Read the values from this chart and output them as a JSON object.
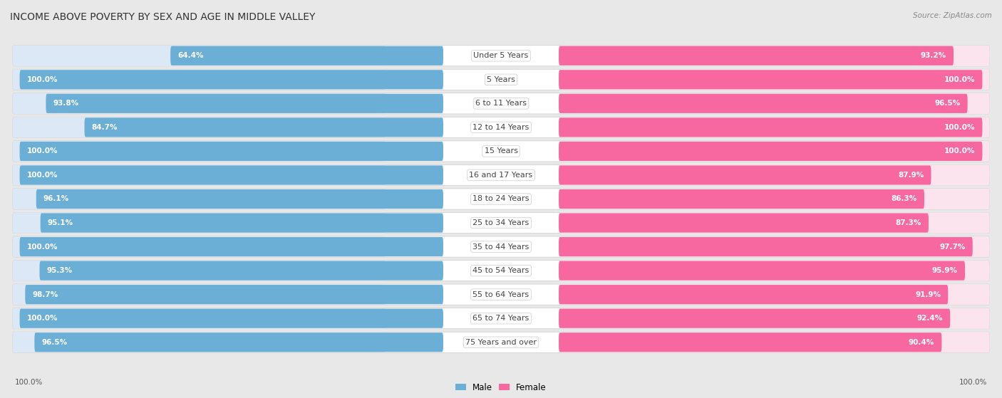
{
  "title": "INCOME ABOVE POVERTY BY SEX AND AGE IN MIDDLE VALLEY",
  "source": "Source: ZipAtlas.com",
  "categories": [
    "Under 5 Years",
    "5 Years",
    "6 to 11 Years",
    "12 to 14 Years",
    "15 Years",
    "16 and 17 Years",
    "18 to 24 Years",
    "25 to 34 Years",
    "35 to 44 Years",
    "45 to 54 Years",
    "55 to 64 Years",
    "65 to 74 Years",
    "75 Years and over"
  ],
  "male_values": [
    64.4,
    100.0,
    93.8,
    84.7,
    100.0,
    100.0,
    96.1,
    95.1,
    100.0,
    95.3,
    98.7,
    100.0,
    96.5
  ],
  "female_values": [
    93.2,
    100.0,
    96.5,
    100.0,
    100.0,
    87.9,
    86.3,
    87.3,
    97.7,
    95.9,
    91.9,
    92.4,
    90.4
  ],
  "male_color": "#6baed6",
  "female_color": "#f768a1",
  "male_color_light": "#bdd7ee",
  "female_color_light": "#fbb4ca",
  "male_label": "Male",
  "female_label": "Female",
  "background_color": "#e8e8e8",
  "row_bg_color": "#f0f0f0",
  "bar_bg_color": "#dce8f5",
  "bar_bg_female_color": "#fce4ee",
  "title_fontsize": 10,
  "label_fontsize": 8,
  "value_fontsize": 7.5,
  "source_fontsize": 7.5,
  "footer_male": "100.0%",
  "footer_female": "100.0%",
  "max_value": 100.0
}
